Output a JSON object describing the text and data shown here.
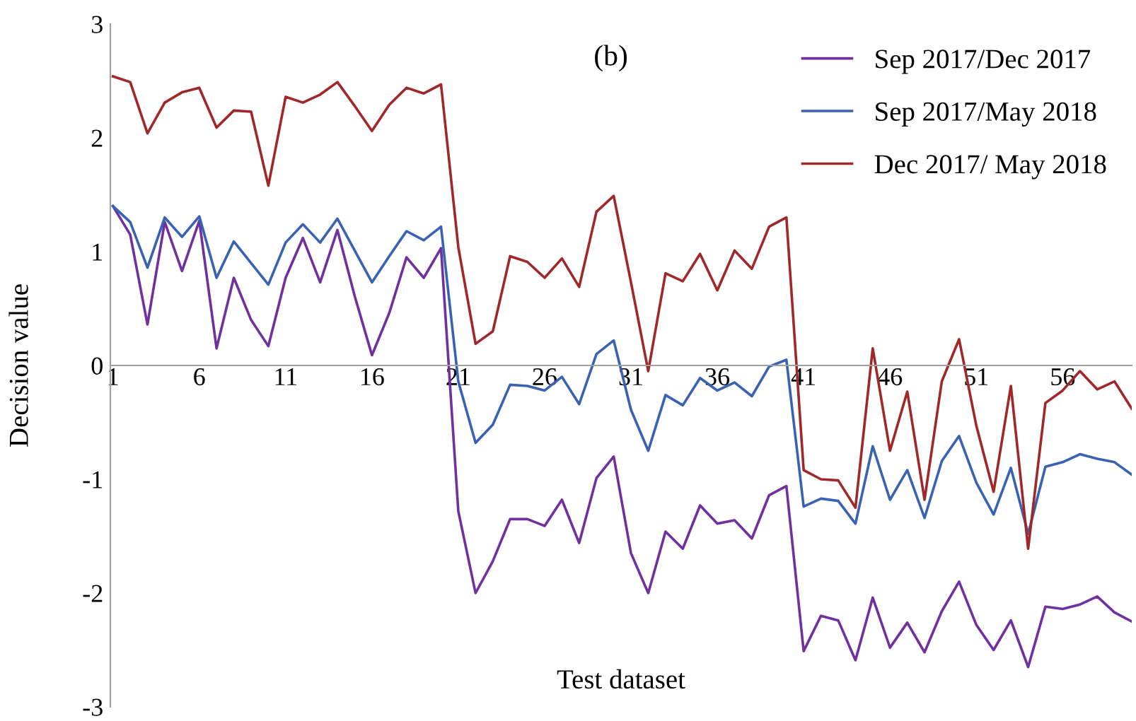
{
  "chart_data": {
    "type": "line",
    "xlabel": "Test dataset",
    "ylabel": "Decision value",
    "annotations": [
      "(b)"
    ],
    "x": [
      1,
      2,
      3,
      4,
      5,
      6,
      7,
      8,
      9,
      10,
      11,
      12,
      13,
      14,
      15,
      16,
      17,
      18,
      19,
      20,
      21,
      22,
      23,
      24,
      25,
      26,
      27,
      28,
      29,
      30,
      31,
      32,
      33,
      34,
      35,
      36,
      37,
      38,
      39,
      40,
      41,
      42,
      43,
      44,
      45,
      46,
      47,
      48,
      49,
      50,
      51,
      52,
      53,
      54,
      55,
      56,
      57,
      58,
      59,
      60
    ],
    "series": [
      {
        "name": "Sep 2017/Dec 2017",
        "color": "#7030a0",
        "values": [
          1.4,
          1.15,
          0.36,
          1.26,
          0.83,
          1.27,
          0.15,
          0.77,
          0.4,
          0.17,
          0.77,
          1.12,
          0.73,
          1.19,
          0.61,
          0.09,
          0.46,
          0.95,
          0.77,
          1.03,
          -1.28,
          -2.0,
          -1.72,
          -1.35,
          -1.35,
          -1.41,
          -1.18,
          -1.56,
          -0.99,
          -0.8,
          -1.65,
          -2.0,
          -1.46,
          -1.61,
          -1.23,
          -1.39,
          -1.36,
          -1.52,
          -1.14,
          -1.06,
          -2.51,
          -2.2,
          -2.24,
          -2.59,
          -2.04,
          -2.48,
          -2.26,
          -2.52,
          -2.16,
          -1.9,
          -2.28,
          -2.5,
          -2.24,
          -2.65,
          -2.12,
          -2.14,
          -2.1,
          -2.03,
          -2.17,
          -2.25
        ]
      },
      {
        "name": "Sep 2017/May 2018",
        "color": "#3a62b4",
        "values": [
          1.4,
          1.26,
          0.86,
          1.3,
          1.13,
          1.31,
          0.77,
          1.09,
          0.9,
          0.71,
          1.08,
          1.24,
          1.08,
          1.29,
          1.01,
          0.73,
          0.96,
          1.18,
          1.1,
          1.22,
          -0.14,
          -0.68,
          -0.52,
          -0.17,
          -0.18,
          -0.22,
          -0.1,
          -0.34,
          0.1,
          0.22,
          -0.39,
          -0.75,
          -0.26,
          -0.35,
          -0.11,
          -0.22,
          -0.15,
          -0.27,
          -0.01,
          0.05,
          -1.24,
          -1.17,
          -1.19,
          -1.39,
          -0.71,
          -1.18,
          -0.92,
          -1.34,
          -0.84,
          -0.62,
          -1.03,
          -1.31,
          -0.9,
          -1.48,
          -0.89,
          -0.85,
          -0.78,
          -0.82,
          -0.85,
          -0.96
        ]
      },
      {
        "name": "Dec 2017/ May 2018",
        "color": "#a0282a",
        "values": [
          2.54,
          2.49,
          2.04,
          2.31,
          2.4,
          2.44,
          2.09,
          2.24,
          2.23,
          1.58,
          2.36,
          2.31,
          2.38,
          2.49,
          2.28,
          2.06,
          2.29,
          2.44,
          2.39,
          2.47,
          1.04,
          0.19,
          0.3,
          0.96,
          0.91,
          0.77,
          0.94,
          0.69,
          1.35,
          1.49,
          0.73,
          -0.05,
          0.81,
          0.74,
          0.98,
          0.66,
          1.01,
          0.85,
          1.22,
          1.3,
          -0.92,
          -1.0,
          -1.01,
          -1.25,
          0.15,
          -0.75,
          -0.23,
          -1.18,
          -0.14,
          0.23,
          -0.53,
          -1.11,
          -0.18,
          -1.61,
          -0.33,
          -0.22,
          -0.05,
          -0.21,
          -0.14,
          -0.38
        ]
      }
    ],
    "xlim": [
      0.85,
      60
    ],
    "xticks": [
      1,
      6,
      11,
      16,
      21,
      26,
      31,
      36,
      41,
      46,
      51,
      56
    ],
    "ylim": [
      -3,
      3
    ],
    "yticks": [
      -3,
      -2,
      -1,
      0,
      1,
      2,
      3
    ],
    "grid": false,
    "legend": "top right",
    "marker": "none",
    "line_style": "solid"
  }
}
